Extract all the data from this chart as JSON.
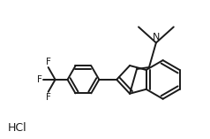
{
  "bg_color": "#ffffff",
  "line_color": "#1a1a1a",
  "line_width": 1.4,
  "text_color": "#1a1a1a",
  "hcl_label": "HCl",
  "n_label": "N",
  "f_label": "F"
}
